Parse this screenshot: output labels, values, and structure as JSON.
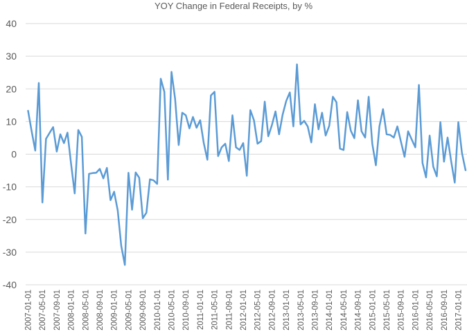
{
  "chart_data": {
    "type": "line",
    "title": "YOY Change in Federal Receipts, by %",
    "xlabel": "",
    "ylabel": "",
    "ylim": [
      -40,
      40
    ],
    "yticks": [
      40,
      30,
      20,
      10,
      0,
      -10,
      -20,
      -30,
      -40
    ],
    "grid": true,
    "legend": "none",
    "line_color": "#5B9BD5",
    "grid_color": "#D9D9D9",
    "x_start": "2007-01-01",
    "x_end": "2017-03-01",
    "x_frequency": "monthly",
    "xtick_labels": [
      "2007-01-01",
      "2007-05-01",
      "2007-09-01",
      "2008-01-01",
      "2008-05-01",
      "2008-09-01",
      "2009-01-01",
      "2009-05-01",
      "2009-09-01",
      "2010-01-01",
      "2010-05-01",
      "2010-09-01",
      "2011-01-01",
      "2011-05-01",
      "2011-09-01",
      "2012-01-01",
      "2012-05-01",
      "2012-09-01",
      "2013-01-01",
      "2013-05-01",
      "2013-09-01",
      "2014-01-01",
      "2014-05-01",
      "2014-09-01",
      "2015-01-01",
      "2015-05-01",
      "2015-09-01",
      "2016-01-01",
      "2016-05-01",
      "2016-09-01",
      "2017-01-01"
    ],
    "series": [
      {
        "name": "YOY Change in Federal Receipts, %",
        "values": [
          13.3,
          7.0,
          1.1,
          21.8,
          -14.8,
          4.7,
          6.5,
          8.3,
          0.8,
          6.1,
          3.4,
          6.6,
          -3.0,
          -12.0,
          7.4,
          5.3,
          -24.3,
          -6.0,
          -5.8,
          -5.7,
          -4.5,
          -7.4,
          -4.2,
          -14.1,
          -11.5,
          -17.2,
          -28.1,
          -33.9,
          -5.7,
          -17.0,
          -5.6,
          -7.2,
          -19.6,
          -17.9,
          -7.7,
          -8.0,
          -9.1,
          23.1,
          19.1,
          -7.8,
          25.2,
          17.0,
          2.8,
          12.7,
          11.9,
          7.9,
          11.4,
          8.1,
          10.4,
          3.4,
          -1.7,
          18.0,
          19.1,
          -0.6,
          2.1,
          3.2,
          -2.1,
          11.9,
          2.1,
          1.3,
          3.4,
          -6.6,
          13.5,
          10.4,
          3.2,
          4.0,
          16.1,
          5.5,
          8.9,
          13.1,
          6.1,
          12.1,
          16.3,
          18.9,
          8.5,
          27.5,
          9.1,
          10.2,
          8.5,
          3.6,
          15.3,
          7.6,
          12.7,
          5.7,
          8.7,
          17.6,
          15.9,
          1.7,
          1.3,
          12.9,
          7.2,
          4.9,
          16.5,
          7.0,
          5.1,
          17.6,
          3.2,
          -3.4,
          8.5,
          13.8,
          6.1,
          5.9,
          5.1,
          8.5,
          3.8,
          -0.8,
          7.0,
          4.5,
          2.1,
          21.2,
          -2.7,
          -7.1,
          5.7,
          -3.8,
          -6.8,
          9.8,
          -2.3,
          5.1,
          -2.1,
          -8.7,
          9.8,
          0.4,
          -4.9
        ]
      }
    ]
  }
}
